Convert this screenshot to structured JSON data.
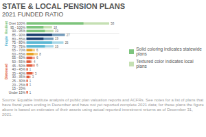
{
  "chart_data": {
    "type": "bar",
    "orientation": "horizontal",
    "stacked": false,
    "title": "STATE & LOCAL PENSION PLANS",
    "subtitle": "2021 FUNDED RATIO",
    "footnote": "Source: Equable Institute analysis of public plan valuation reports and ACFRs. See notes for a list of plans that have fiscal years ending in December and have not yet reported complete 2021 data; for these plans the figure above is based on estimates of their assets using actual reported investment returns as of December 31, 2021.",
    "categories": [
      "Over 100%",
      "95 - 100%",
      "90 - 95%",
      "85 - 90%",
      "80 - 85%",
      "75 - 80%",
      "70 - 75%",
      "65 - 70%",
      "60 - 65%",
      "55 - 60%",
      "50 - 55%",
      "45 - 50%",
      "40 - 45%",
      "35 - 40%",
      "30 - 35%",
      "25 - 30%",
      "20 - 25%",
      "15 - 20%",
      "Under 15%"
    ],
    "series": [
      {
        "name": "Solid coloring indicates statewide plans",
        "values": [
          40,
          12,
          13,
          18,
          12,
          18,
          13,
          4,
          5,
          4,
          3,
          4,
          1,
          4,
          2,
          1,
          1,
          0,
          1
        ],
        "colors": [
          "#7dc47d",
          "#7dc47d",
          "#7dc47d",
          "#1a3f6f",
          "#1a3f6f",
          "#5bb8d4",
          "#5bb8d4",
          "#e8a020",
          "#e8a020",
          "#e05a3a",
          "#e05a3a",
          "#e05a3a",
          "#e05a3a",
          "#e05a3a",
          "#e05a3a",
          "#e05a3a",
          "#e05a3a",
          "#e05a3a",
          "#e05a3a"
        ]
      },
      {
        "name": "Textured color indicates local plans",
        "values": [
          58,
          18,
          19,
          27,
          19,
          26,
          19,
          6,
          8,
          6,
          4,
          6,
          1,
          5,
          3,
          1,
          1,
          0,
          1
        ],
        "value_labels": [
          "58",
          "18",
          "19",
          "27",
          "19",
          "26",
          "19",
          "6",
          "8",
          "6",
          "4",
          "6",
          "1",
          "5",
          "3",
          "1",
          "1",
          null,
          "1"
        ],
        "colors": [
          "#c5e0b3",
          "#c5e0b3",
          "#c5e0b3",
          "#7098b8",
          "#7098b8",
          "#aad8e8",
          "#aad8e8",
          "#f5cc80",
          "#f5cc80",
          "#f0a898",
          "#f0a898",
          "#f0a898",
          "#f0a898",
          "#f0a898",
          "#f0a898",
          "#f0a898",
          "#f0a898",
          "#f0a898",
          "#f0a898"
        ]
      }
    ],
    "sections": [
      {
        "label": "Resilient",
        "color": "#7dc47d",
        "first": "Over 100%",
        "last": "90 - 95%"
      },
      {
        "label": "Fragile",
        "color": "#5bb8d4",
        "first": "85 - 90%",
        "last": "70 - 75%"
      },
      {
        "label": "Distressed",
        "color": "#e05a3a",
        "first": "65 - 70%",
        "last": "Under 15%"
      }
    ],
    "xlim": [
      0,
      65
    ],
    "tick_labels": "y",
    "grid": false,
    "legend": "right"
  }
}
